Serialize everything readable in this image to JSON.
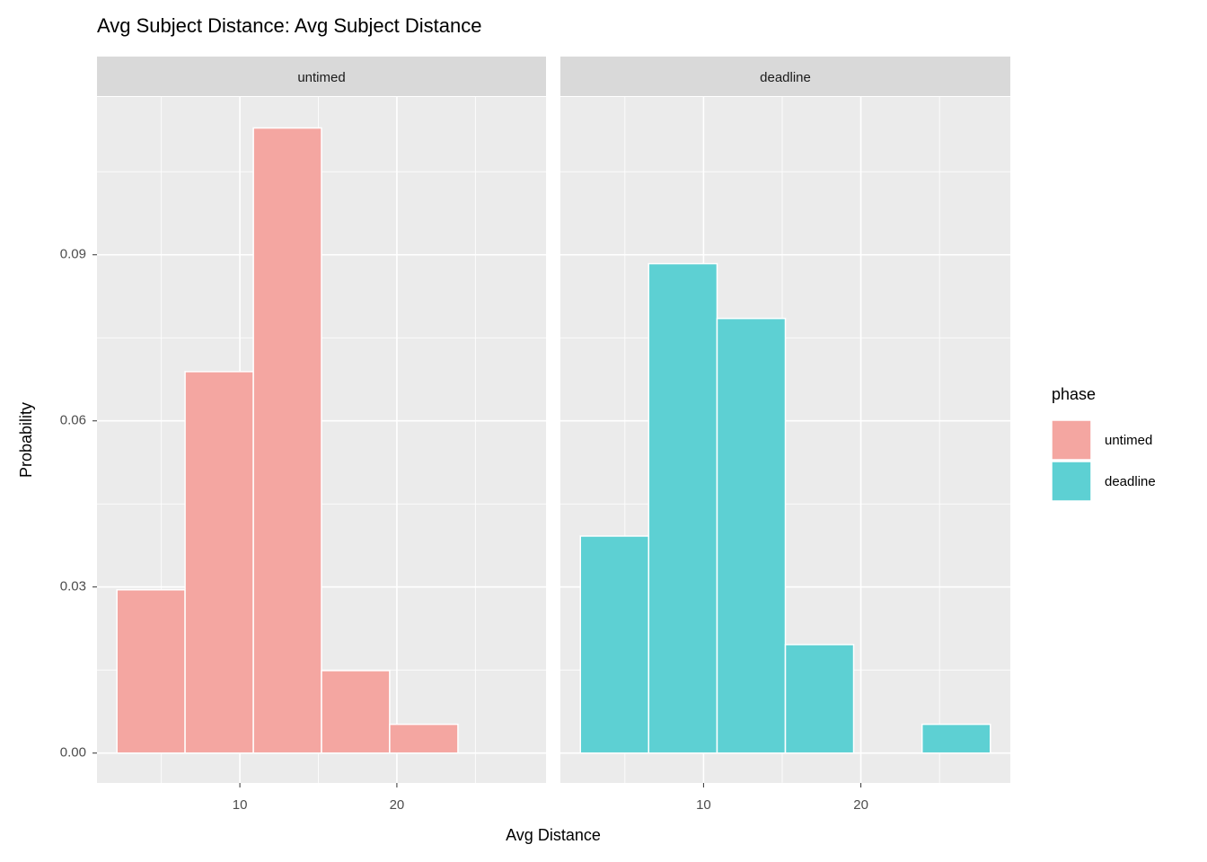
{
  "chart_data": {
    "type": "histogram",
    "title": "Avg Subject Distance: Avg Subject Distance",
    "xlabel": "Avg Distance",
    "ylabel": "Probability",
    "legend_title": "phase",
    "legend": "right",
    "facet": true,
    "grid": true,
    "bins": [
      2.17,
      6.51,
      10.86,
      15.2,
      19.54,
      23.89,
      28.23
    ],
    "series": [
      {
        "name": "untimed",
        "color": "#f4a6a1",
        "values": [
          0.0295,
          0.0689,
          0.1129,
          0.0149,
          0.0052,
          0
        ]
      },
      {
        "name": "deadline",
        "color": "#5dd0d3",
        "values": [
          0.0392,
          0.0884,
          0.0785,
          0.0196,
          0,
          0.0052
        ]
      }
    ],
    "xlim": [
      0.9,
      29.5
    ],
    "xticks": [
      10,
      20
    ],
    "xminor": [
      5,
      15,
      25
    ],
    "ylim": [
      -0.0054,
      0.1185
    ],
    "yticks": [
      {
        "value": 0,
        "label": "0.00"
      },
      {
        "value": 0.03,
        "label": "0.03"
      },
      {
        "value": 0.06,
        "label": "0.06"
      },
      {
        "value": 0.09,
        "label": "0.09"
      }
    ],
    "yminor": [
      0.015,
      0.045,
      0.075,
      0.105
    ]
  }
}
